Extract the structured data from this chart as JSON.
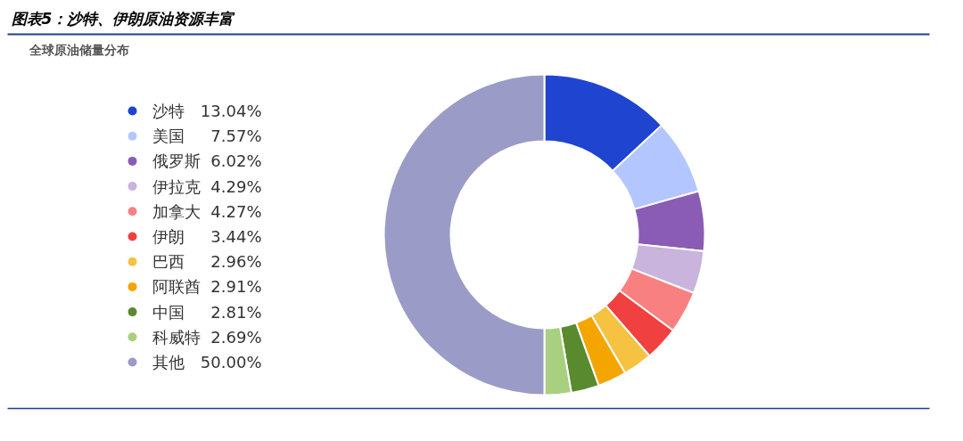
{
  "chart_data": {
    "type": "donut",
    "title": "图表5：沙特、伊朗原油资源丰富",
    "subtitle": "全球原油储量分布",
    "categories": [
      "沙特",
      "美国",
      "俄罗斯",
      "伊拉克",
      "加拿大",
      "伊朗",
      "巴西",
      "阿联酋",
      "中国",
      "科威特",
      "其他"
    ],
    "values": [
      13.04,
      7.57,
      6.02,
      4.29,
      4.27,
      3.44,
      2.96,
      2.91,
      2.81,
      2.69,
      50.0
    ],
    "value_labels": [
      "13.04%",
      "7.57%",
      "6.02%",
      "4.29%",
      "4.27%",
      "3.44%",
      "2.96%",
      "2.91%",
      "2.81%",
      "2.69%",
      "50.00%"
    ],
    "colors": [
      "#1f44d0",
      "#b3c6ff",
      "#8a5cb5",
      "#c8b4dc",
      "#f98080",
      "#f04040",
      "#f5c242",
      "#f5a500",
      "#5a8a2e",
      "#a8d080",
      "#9b9bc8"
    ],
    "legend": "left"
  }
}
